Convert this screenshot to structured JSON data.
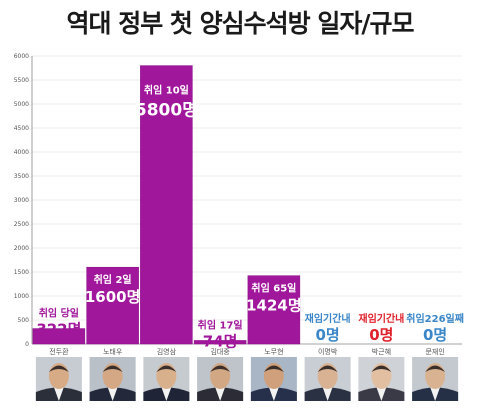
{
  "title": "역대 정부 첫 양심수석방 일자/규모",
  "colors": {
    "bar": "#a1179b",
    "bar_edge": "#8a0f86",
    "purple_text": "#a1179b",
    "blue_text": "#3a86c8",
    "red_text": "#e0202a",
    "grid": "#dddddd",
    "axis": "#888888"
  },
  "chart_data": {
    "type": "bar",
    "categories": [
      "전두환",
      "노태우",
      "김영삼",
      "김대중",
      "노무현",
      "이명박",
      "박근혜",
      "문재인"
    ],
    "values": [
      322,
      1600,
      5800,
      74,
      1424,
      0,
      0,
      0
    ],
    "ylim": [
      0,
      6000
    ],
    "yticks": [
      0,
      500,
      1000,
      1500,
      2000,
      2500,
      3000,
      3500,
      4000,
      4500,
      5000,
      5500,
      6000
    ],
    "grid": true,
    "annotations": [
      {
        "top": "취임 당일",
        "value": "322명",
        "color": "purple"
      },
      {
        "top": "취임 2일",
        "value": "1600명",
        "color": "white"
      },
      {
        "top": "취임 10일",
        "value": "5800명",
        "color": "white"
      },
      {
        "top": "취임 17일",
        "value": "74명",
        "color": "purple"
      },
      {
        "top": "취임 65일",
        "value": "1424명",
        "color": "white"
      },
      {
        "top": "재임기간내",
        "value": "0명",
        "color": "blue"
      },
      {
        "top": "재임기간내",
        "value": "0명",
        "color": "red"
      },
      {
        "top": "취임226일째",
        "value": "0명",
        "color": "blue"
      }
    ]
  },
  "portraits": [
    {
      "name": "전두환",
      "icon": "portrait-icon",
      "suit": "#2a2f3a",
      "face": "#d7ab86",
      "bg": "#c7ccd2"
    },
    {
      "name": "노태우",
      "icon": "portrait-icon",
      "suit": "#23293a",
      "face": "#d4a884",
      "bg": "#b9c0c8"
    },
    {
      "name": "김영삼",
      "icon": "portrait-icon",
      "suit": "#1f2536",
      "face": "#d9b08c",
      "bg": "#c6cbd0"
    },
    {
      "name": "김대중",
      "icon": "portrait-icon",
      "suit": "#2b2c35",
      "face": "#d2a783",
      "bg": "#bfc4ca"
    },
    {
      "name": "노무현",
      "icon": "portrait-icon",
      "suit": "#26304a",
      "face": "#cfa07b",
      "bg": "#a9b6c6"
    },
    {
      "name": "이명박",
      "icon": "portrait-icon",
      "suit": "#2a3142",
      "face": "#d8b292",
      "bg": "#c9ced4"
    },
    {
      "name": "박근혜",
      "icon": "portrait-icon",
      "suit": "#3a3a46",
      "face": "#e2bfa0",
      "bg": "#cfd2d6"
    },
    {
      "name": "문재인",
      "icon": "portrait-icon",
      "suit": "#253047",
      "face": "#d9b391",
      "bg": "#c4c9cf"
    }
  ]
}
